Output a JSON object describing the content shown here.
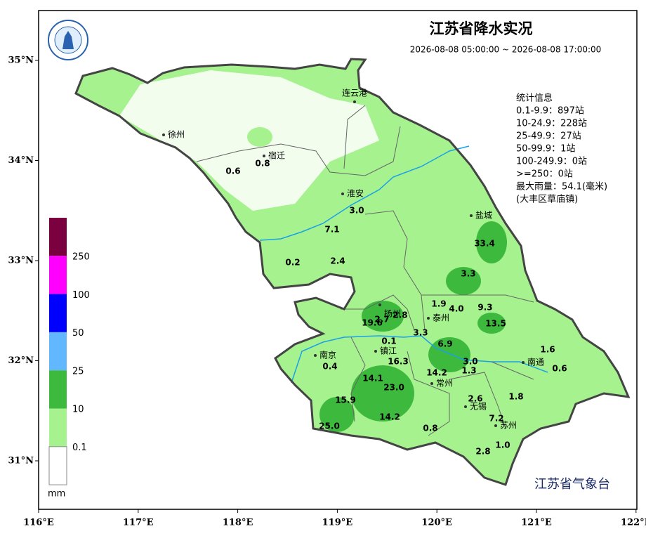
{
  "header": {
    "title": "江苏省降水实况",
    "time_range": "2026-08-08 05:00:00 ~ 2026-08-08 17:00:00"
  },
  "stats": {
    "heading": "统计信息",
    "lines": [
      "0.1-9.9：897站",
      "10-24.9：228站",
      "25-49.9：27站",
      "50-99.9：1站",
      "100-249.9：0站",
      ">=250：0站",
      "最大雨量：54.1(毫米)",
      "(大丰区草庙镇)"
    ]
  },
  "legend": {
    "labels": [
      "250",
      "100",
      "50",
      "25",
      "10",
      "0.1"
    ],
    "unit": "mm",
    "colors": [
      "#7a0040",
      "#ff00ff",
      "#0000ff",
      "#61b8ff",
      "#3dba3d",
      "#a6f28f",
      "#ffffff"
    ]
  },
  "cities": [
    "徐州",
    "宿迁",
    "连云港",
    "淮安",
    "盐城",
    "扬州",
    "泰州",
    "南京",
    "镇江",
    "南通",
    "常州",
    "无锡",
    "苏州"
  ],
  "rain_labels": [
    "0.6",
    "0.8",
    "3.0",
    "7.1",
    "0.2",
    "2.4",
    "33.4",
    "3.3",
    "1.9",
    "4.0",
    "9.3",
    "19.6",
    "2.7",
    "2.8",
    "13.5",
    "3.3",
    "0.1",
    "6.9",
    "1.6",
    "16.3",
    "3.0",
    "0.4",
    "1.3",
    "0.6",
    "14.1",
    "14.2",
    "23.0",
    "2.6",
    "1.8",
    "15.9",
    "14.2",
    "7.2",
    "25.0",
    "0.8",
    "1.0",
    "2.8"
  ],
  "axes": {
    "lon_ticks": [
      {
        "value": 116,
        "label": "116°E"
      },
      {
        "value": 117,
        "label": "117°E"
      },
      {
        "value": 118,
        "label": "118°E"
      },
      {
        "value": 119,
        "label": "119°E"
      },
      {
        "value": 120,
        "label": "120°E"
      },
      {
        "value": 121,
        "label": "121°E"
      },
      {
        "value": 122,
        "label": "122°E"
      }
    ],
    "lat_ticks": [
      {
        "value": 35,
        "label": "35°N"
      },
      {
        "value": 34,
        "label": "34°N"
      },
      {
        "value": 33,
        "label": "33°N"
      },
      {
        "value": 32,
        "label": "32°N"
      },
      {
        "value": 31,
        "label": "31°N"
      }
    ]
  },
  "footer": "江苏省气象台"
}
